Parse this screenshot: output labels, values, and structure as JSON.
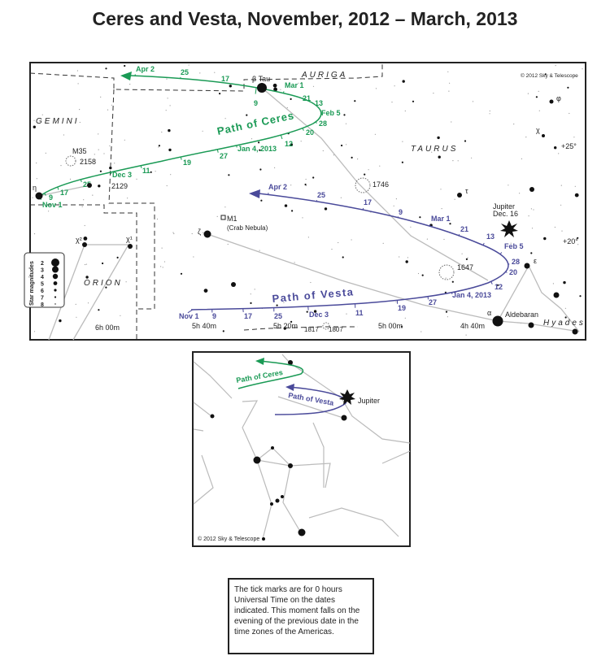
{
  "title": "Ceres and Vesta, November, 2012 – March, 2013",
  "colors": {
    "ceres": "#1a9a55",
    "vesta": "#4a4a9a",
    "constellation_lines": "#bbbbbb",
    "stars": "#111111"
  },
  "main_chart": {
    "copyright": "© 2012 Sky & Telescope",
    "constellations": {
      "auriga": "AURIGA",
      "gemini": "GEMINI",
      "taurus": "TAURUS",
      "orion": "ORION"
    },
    "ceres": {
      "path_label": "Path of Ceres",
      "dates": [
        "Apr 2",
        "25",
        "17",
        "9",
        "Mar 1",
        "21",
        "13",
        "Feb 5",
        "28",
        "20",
        "12",
        "Jan 4, 2013",
        "27",
        "19",
        "11",
        "Dec 3",
        "25",
        "17",
        "9",
        "Nov 1"
      ]
    },
    "vesta": {
      "path_label": "Path of Vesta",
      "dates": [
        "Apr 2",
        "25",
        "17",
        "9",
        "Mar 1",
        "21",
        "13",
        "Feb 5",
        "28",
        "20",
        "12",
        "Jan 4, 2013",
        "27",
        "19",
        "11",
        "Dec 3",
        "25",
        "17",
        "9",
        "Nov 1"
      ]
    },
    "objects": {
      "beta_tau": "β Tau",
      "m35": "M35",
      "ngc2158": "2158",
      "ngc2129": "2129",
      "eta": "η",
      "m1": "M1",
      "crab": "(Crab Nebula)",
      "zeta": "ζ",
      "chi1": "χ¹",
      "chi2": "χ²",
      "ngc1746": "1746",
      "ngc1647": "1647",
      "ngc1817": "1817",
      "ngc1807": "1807",
      "tau": "τ",
      "phi": "φ",
      "chi": "χ",
      "epsilon": "ε",
      "alpha": "α",
      "aldebaran": "Aldebaran",
      "hyades": "Hyades",
      "jupiter": "Jupiter",
      "jupiter_date": "Dec. 16"
    },
    "coordinates": {
      "dec_25": "+25°",
      "dec_20": "+20°",
      "ra_6h00": "6h 00m",
      "ra_5h40": "5h 40m",
      "ra_5h20": "5h 20m",
      "ra_5h00": "5h 00m",
      "ra_4h40": "4h 40m"
    },
    "magnitude_legend": {
      "title": "Star magnitudes",
      "values": [
        "2",
        "3",
        "4",
        "5",
        "6",
        "7",
        "8"
      ]
    }
  },
  "inset_chart": {
    "ceres_label": "Path of Ceres",
    "vesta_label": "Path of Vesta",
    "jupiter": "Jupiter",
    "copyright": "© 2012 Sky & Telescope"
  },
  "note": "The tick marks are for 0 hours Universal Time on the dates indicated. This moment falls on the evening of the previous date in the time zones of the Americas."
}
